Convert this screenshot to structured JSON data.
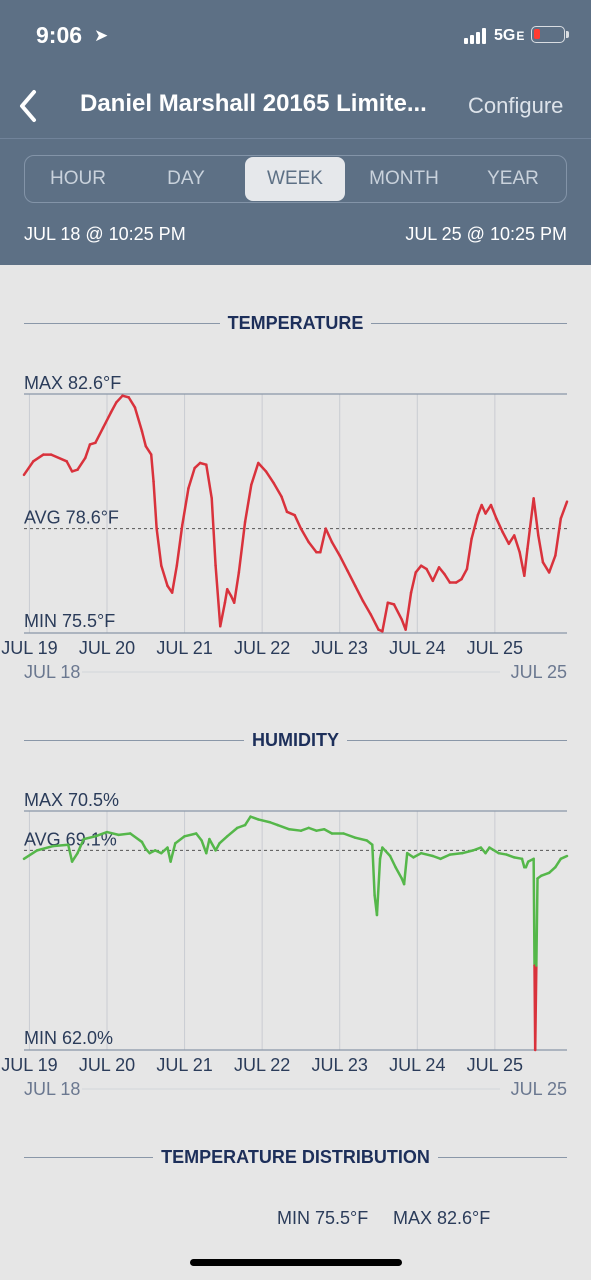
{
  "status": {
    "time": "9:06",
    "network": "5G",
    "network_sub": "E"
  },
  "header": {
    "back_icon": "chevron-left-icon",
    "title": "Daniel Marshall 20165 Limite...",
    "configure": "Configure"
  },
  "tabs": [
    {
      "label": "HOUR",
      "active": false
    },
    {
      "label": "DAY",
      "active": false
    },
    {
      "label": "WEEK",
      "active": true
    },
    {
      "label": "MONTH",
      "active": false
    },
    {
      "label": "YEAR",
      "active": false
    }
  ],
  "range": {
    "start": "JUL 18 @ 10:25 PM",
    "end": "JUL 25 @ 10:25 PM"
  },
  "sections": {
    "temperature": "TEMPERATURE",
    "humidity": "HUMIDITY",
    "distribution": "TEMPERATURE DISTRIBUTION"
  },
  "distribution": {
    "min": "MIN 75.5°F",
    "max": "MAX 82.6°F"
  },
  "chart_data": [
    {
      "type": "line",
      "title": "TEMPERATURE",
      "max_label": "MAX 82.6°F",
      "avg_label": "AVG 78.6°F",
      "min_label": "MIN 75.5°F",
      "ylim": [
        75.5,
        82.6
      ],
      "avg": 78.6,
      "x_ticks": [
        {
          "label": "JUL 19",
          "x": 19.0
        },
        {
          "label": "JUL 20",
          "x": 20.0
        },
        {
          "label": "JUL 21",
          "x": 21.0
        },
        {
          "label": "JUL 22",
          "x": 22.0
        },
        {
          "label": "JUL 23",
          "x": 23.0
        },
        {
          "label": "JUL 24",
          "x": 24.0
        },
        {
          "label": "JUL 25",
          "x": 25.0
        }
      ],
      "x_start_label": "JUL 18",
      "x_end_label": "JUL 25",
      "xlim": [
        18.93,
        25.93
      ],
      "line_color": "#d9323c",
      "points": [
        [
          18.93,
          80.2
        ],
        [
          19.05,
          80.6
        ],
        [
          19.18,
          80.8
        ],
        [
          19.28,
          80.8
        ],
        [
          19.48,
          80.6
        ],
        [
          19.55,
          80.3
        ],
        [
          19.62,
          80.35
        ],
        [
          19.72,
          80.7
        ],
        [
          19.78,
          81.1
        ],
        [
          19.85,
          81.15
        ],
        [
          19.95,
          81.6
        ],
        [
          20.05,
          82.05
        ],
        [
          20.12,
          82.35
        ],
        [
          20.2,
          82.55
        ],
        [
          20.28,
          82.5
        ],
        [
          20.36,
          82.2
        ],
        [
          20.45,
          81.5
        ],
        [
          20.5,
          81.05
        ],
        [
          20.57,
          80.8
        ],
        [
          20.6,
          80.0
        ],
        [
          20.64,
          78.6
        ],
        [
          20.7,
          77.5
        ],
        [
          20.78,
          76.9
        ],
        [
          20.84,
          76.7
        ],
        [
          20.9,
          77.5
        ],
        [
          20.97,
          78.7
        ],
        [
          21.05,
          79.8
        ],
        [
          21.13,
          80.4
        ],
        [
          21.2,
          80.55
        ],
        [
          21.28,
          80.5
        ],
        [
          21.35,
          79.5
        ],
        [
          21.4,
          77.5
        ],
        [
          21.46,
          75.7
        ],
        [
          21.52,
          76.4
        ],
        [
          21.55,
          76.8
        ],
        [
          21.6,
          76.6
        ],
        [
          21.64,
          76.4
        ],
        [
          21.7,
          77.3
        ],
        [
          21.78,
          78.8
        ],
        [
          21.86,
          79.9
        ],
        [
          21.95,
          80.55
        ],
        [
          22.05,
          80.3
        ],
        [
          22.15,
          79.95
        ],
        [
          22.25,
          79.55
        ],
        [
          22.32,
          79.1
        ],
        [
          22.42,
          79.0
        ],
        [
          22.5,
          78.6
        ],
        [
          22.6,
          78.2
        ],
        [
          22.7,
          77.9
        ],
        [
          22.75,
          77.9
        ],
        [
          22.82,
          78.6
        ],
        [
          22.9,
          78.2
        ],
        [
          23.0,
          77.8
        ],
        [
          23.1,
          77.35
        ],
        [
          23.2,
          76.9
        ],
        [
          23.3,
          76.45
        ],
        [
          23.4,
          76.05
        ],
        [
          23.5,
          75.6
        ],
        [
          23.55,
          75.55
        ],
        [
          23.62,
          76.4
        ],
        [
          23.7,
          76.35
        ],
        [
          23.8,
          75.9
        ],
        [
          23.85,
          75.6
        ],
        [
          23.92,
          76.7
        ],
        [
          23.98,
          77.3
        ],
        [
          24.05,
          77.5
        ],
        [
          24.12,
          77.4
        ],
        [
          24.2,
          77.05
        ],
        [
          24.28,
          77.45
        ],
        [
          24.35,
          77.25
        ],
        [
          24.42,
          77.0
        ],
        [
          24.5,
          77.0
        ],
        [
          24.57,
          77.1
        ],
        [
          24.64,
          77.4
        ],
        [
          24.7,
          78.3
        ],
        [
          24.78,
          79.0
        ],
        [
          24.83,
          79.3
        ],
        [
          24.88,
          79.05
        ],
        [
          24.95,
          79.3
        ],
        [
          25.02,
          78.9
        ],
        [
          25.1,
          78.5
        ],
        [
          25.18,
          78.15
        ],
        [
          25.25,
          78.4
        ],
        [
          25.32,
          77.9
        ],
        [
          25.38,
          77.2
        ],
        [
          25.42,
          78.0
        ],
        [
          25.5,
          79.5
        ],
        [
          25.56,
          78.4
        ],
        [
          25.62,
          77.6
        ],
        [
          25.7,
          77.3
        ],
        [
          25.78,
          77.8
        ],
        [
          25.85,
          78.9
        ],
        [
          25.93,
          79.4
        ]
      ]
    },
    {
      "type": "line",
      "title": "HUMIDITY",
      "max_label": "MAX 70.5%",
      "avg_label": "AVG 69.1%",
      "min_label": "MIN 62.0%",
      "ylim": [
        62.0,
        70.5
      ],
      "avg": 69.1,
      "x_ticks": [
        {
          "label": "JUL 19",
          "x": 19.0
        },
        {
          "label": "JUL 20",
          "x": 20.0
        },
        {
          "label": "JUL 21",
          "x": 21.0
        },
        {
          "label": "JUL 22",
          "x": 22.0
        },
        {
          "label": "JUL 23",
          "x": 23.0
        },
        {
          "label": "JUL 24",
          "x": 24.0
        },
        {
          "label": "JUL 25",
          "x": 25.0
        }
      ],
      "x_start_label": "JUL 18",
      "x_end_label": "JUL 25",
      "xlim": [
        18.93,
        25.93
      ],
      "line_color": "#55b74a",
      "alert_color": "#d9323c",
      "alert_threshold": 65.0,
      "points": [
        [
          18.93,
          68.8
        ],
        [
          19.1,
          69.1
        ],
        [
          19.3,
          69.25
        ],
        [
          19.5,
          69.3
        ],
        [
          19.55,
          68.7
        ],
        [
          19.62,
          69.0
        ],
        [
          19.7,
          69.5
        ],
        [
          19.85,
          69.6
        ],
        [
          20.0,
          69.75
        ],
        [
          20.15,
          69.65
        ],
        [
          20.3,
          69.7
        ],
        [
          20.45,
          69.4
        ],
        [
          20.5,
          69.15
        ],
        [
          20.55,
          69.0
        ],
        [
          20.62,
          69.1
        ],
        [
          20.7,
          69.0
        ],
        [
          20.78,
          69.2
        ],
        [
          20.82,
          68.7
        ],
        [
          20.88,
          69.35
        ],
        [
          21.0,
          69.6
        ],
        [
          21.15,
          69.7
        ],
        [
          21.22,
          69.45
        ],
        [
          21.28,
          69.0
        ],
        [
          21.32,
          69.5
        ],
        [
          21.4,
          69.1
        ],
        [
          21.45,
          69.35
        ],
        [
          21.55,
          69.6
        ],
        [
          21.68,
          69.9
        ],
        [
          21.78,
          70.0
        ],
        [
          21.85,
          70.3
        ],
        [
          21.95,
          70.2
        ],
        [
          22.1,
          70.1
        ],
        [
          22.2,
          70.0
        ],
        [
          22.35,
          69.85
        ],
        [
          22.5,
          69.8
        ],
        [
          22.6,
          69.9
        ],
        [
          22.7,
          69.8
        ],
        [
          22.8,
          69.85
        ],
        [
          22.9,
          69.7
        ],
        [
          23.05,
          69.7
        ],
        [
          23.2,
          69.55
        ],
        [
          23.35,
          69.45
        ],
        [
          23.42,
          69.3
        ],
        [
          23.45,
          67.5
        ],
        [
          23.48,
          66.8
        ],
        [
          23.52,
          68.8
        ],
        [
          23.55,
          69.2
        ],
        [
          23.65,
          68.9
        ],
        [
          23.72,
          68.5
        ],
        [
          23.8,
          68.1
        ],
        [
          23.83,
          67.9
        ],
        [
          23.87,
          69.0
        ],
        [
          23.95,
          68.85
        ],
        [
          24.05,
          69.0
        ],
        [
          24.2,
          68.9
        ],
        [
          24.3,
          68.8
        ],
        [
          24.42,
          68.95
        ],
        [
          24.58,
          69.0
        ],
        [
          24.72,
          69.1
        ],
        [
          24.82,
          69.2
        ],
        [
          24.88,
          69.0
        ],
        [
          24.93,
          69.2
        ],
        [
          25.05,
          69.0
        ],
        [
          25.15,
          68.95
        ],
        [
          25.25,
          68.85
        ],
        [
          25.35,
          68.8
        ],
        [
          25.38,
          68.5
        ],
        [
          25.4,
          68.5
        ],
        [
          25.43,
          68.7
        ],
        [
          25.5,
          68.8
        ],
        [
          25.52,
          62.0
        ],
        [
          25.55,
          68.1
        ],
        [
          25.6,
          68.2
        ],
        [
          25.7,
          68.3
        ],
        [
          25.78,
          68.5
        ],
        [
          25.85,
          68.8
        ],
        [
          25.93,
          68.9
        ]
      ]
    }
  ]
}
